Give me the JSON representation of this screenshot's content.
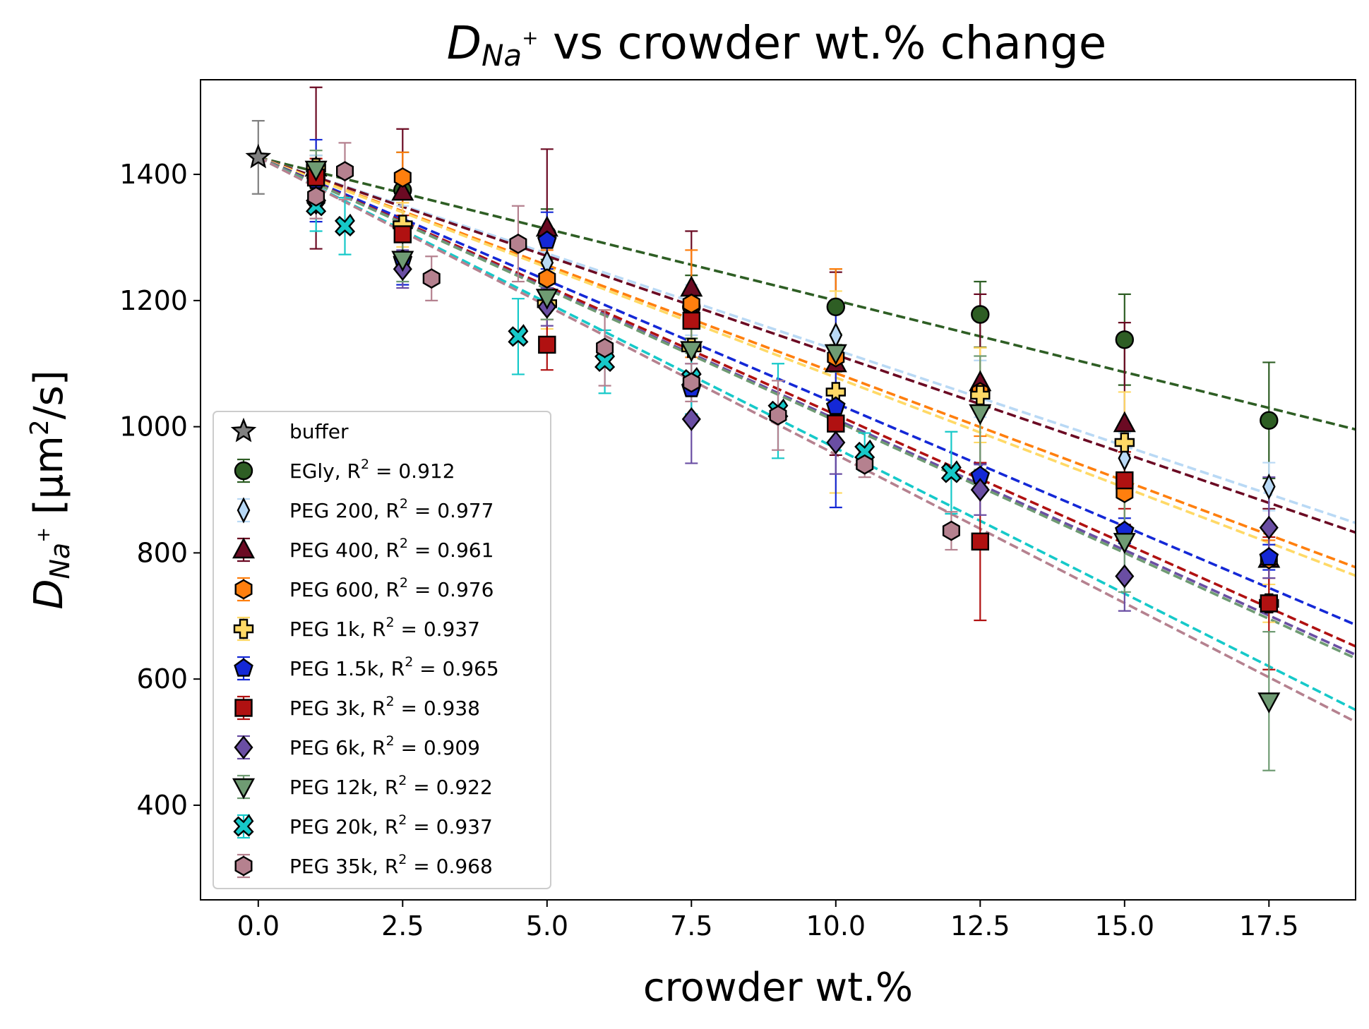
{
  "chart_data": {
    "type": "scatter",
    "title": "D_Na+ vs crowder wt.% change",
    "title_parts": {
      "symbol": "D",
      "subscript": "Na",
      "superscript": "+",
      "rest": " vs crowder wt.% change"
    },
    "xlabel": "crowder wt.%",
    "ylabel": "D_Na+ [μm²/s]",
    "ylabel_parts": {
      "symbol": "D",
      "subscript": "Na",
      "superscript": "+",
      "unit_prefix": " [μm",
      "unit_sup": "2",
      "unit_suffix": "/s]"
    },
    "xlim": [
      -1.0,
      19.0
    ],
    "ylim": [
      250,
      1550
    ],
    "x_ticks": [
      0.0,
      2.5,
      5.0,
      7.5,
      10.0,
      12.5,
      15.0,
      17.5
    ],
    "x_tick_labels": [
      "0.0",
      "2.5",
      "5.0",
      "7.5",
      "10.0",
      "12.5",
      "15.0",
      "17.5"
    ],
    "y_ticks": [
      400,
      600,
      800,
      1000,
      1200,
      1400
    ],
    "y_tick_labels": [
      "400",
      "600",
      "800",
      "1000",
      "1200",
      "1400"
    ],
    "grid": false,
    "legend_position": "lower-left",
    "series": [
      {
        "name": "buffer",
        "label_prefix": "buffer",
        "r2_value": "",
        "marker": "star",
        "color": "#808080",
        "edge": "#000000",
        "points": [
          {
            "x": 0,
            "y": 1427,
            "err": 58
          }
        ],
        "fit": null
      },
      {
        "name": "EGly",
        "label_prefix": "EGly, R",
        "r2_value": " = 0.912",
        "marker": "circle",
        "color": "#2e5e24",
        "edge": "#000000",
        "points": [
          {
            "x": 1,
            "y": 1405,
            "err": 25
          },
          {
            "x": 2.5,
            "y": 1375,
            "err": 60
          },
          {
            "x": 5,
            "y": 1305,
            "err": 40
          },
          {
            "x": 7.5,
            "y": 1190,
            "err": 50
          },
          {
            "x": 10,
            "y": 1190,
            "err": 60
          },
          {
            "x": 12.5,
            "y": 1178,
            "err": 52
          },
          {
            "x": 15,
            "y": 1138,
            "err": 72
          },
          {
            "x": 17.5,
            "y": 1010,
            "err": 92
          }
        ],
        "fit": {
          "x0": 0,
          "y0": 1427,
          "slope": -22.7
        }
      },
      {
        "name": "PEG 200",
        "label_prefix": "PEG 200, R",
        "r2_value": " = 0.977",
        "marker": "thin_diamond",
        "color": "#b9d9f5",
        "edge": "#000000",
        "points": [
          {
            "x": 1,
            "y": 1400,
            "err": 30
          },
          {
            "x": 2.5,
            "y": 1310,
            "err": 40
          },
          {
            "x": 5,
            "y": 1260,
            "err": 35
          },
          {
            "x": 7.5,
            "y": 1185,
            "err": 40
          },
          {
            "x": 10,
            "y": 1145,
            "err": 50
          },
          {
            "x": 12.5,
            "y": 1060,
            "err": 45
          },
          {
            "x": 15,
            "y": 950,
            "err": 40
          },
          {
            "x": 17.5,
            "y": 905,
            "err": 38
          }
        ],
        "fit": {
          "x0": 0,
          "y0": 1427,
          "slope": -30.5
        }
      },
      {
        "name": "PEG 400",
        "label_prefix": "PEG 400, R",
        "r2_value": " = 0.961",
        "marker": "triangle_up",
        "color": "#6b0a23",
        "edge": "#000000",
        "points": [
          {
            "x": 1,
            "y": 1410,
            "err": 128
          },
          {
            "x": 2.5,
            "y": 1372,
            "err": 100
          },
          {
            "x": 5,
            "y": 1315,
            "err": 125
          },
          {
            "x": 7.5,
            "y": 1220,
            "err": 90
          },
          {
            "x": 10,
            "y": 1100,
            "err": 145
          },
          {
            "x": 12.5,
            "y": 1070,
            "err": 140
          },
          {
            "x": 15,
            "y": 1005,
            "err": 160
          },
          {
            "x": 17.5,
            "y": 790,
            "err": 80
          }
        ],
        "fit": {
          "x0": 0,
          "y0": 1427,
          "slope": -31.3
        }
      },
      {
        "name": "PEG 600",
        "label_prefix": "PEG 600, R",
        "r2_value": " = 0.976",
        "marker": "hexagon",
        "color": "#ff7f0e",
        "edge": "#000000",
        "points": [
          {
            "x": 1,
            "y": 1395,
            "err": 30
          },
          {
            "x": 2.5,
            "y": 1395,
            "err": 40
          },
          {
            "x": 5,
            "y": 1235,
            "err": 45
          },
          {
            "x": 7.5,
            "y": 1195,
            "err": 85
          },
          {
            "x": 10,
            "y": 1110,
            "err": 140
          },
          {
            "x": 12.5,
            "y": 1055,
            "err": 70
          },
          {
            "x": 15,
            "y": 895,
            "err": 65
          },
          {
            "x": 17.5,
            "y": 790,
            "err": 30
          }
        ],
        "fit": {
          "x0": 0,
          "y0": 1427,
          "slope": -34.2
        }
      },
      {
        "name": "PEG 1k",
        "label_prefix": "PEG 1k, R",
        "r2_value": " = 0.937",
        "marker": "plus_filled",
        "color": "#ffd966",
        "edge": "#000000",
        "points": [
          {
            "x": 1,
            "y": 1410,
            "err": 28
          },
          {
            "x": 2.5,
            "y": 1320,
            "err": 35
          },
          {
            "x": 5,
            "y": 1195,
            "err": 40
          },
          {
            "x": 7.5,
            "y": 1125,
            "err": 42
          },
          {
            "x": 10,
            "y": 1055,
            "err": 160
          },
          {
            "x": 12.5,
            "y": 1050,
            "err": 75
          },
          {
            "x": 15,
            "y": 975,
            "err": 80
          },
          {
            "x": 17.5,
            "y": 720,
            "err": 30
          }
        ],
        "fit": {
          "x0": 0,
          "y0": 1427,
          "slope": -34.9
        }
      },
      {
        "name": "PEG 1.5k",
        "label_prefix": "PEG 1.5k, R",
        "r2_value": " = 0.965",
        "marker": "pentagon",
        "color": "#1428d6",
        "edge": "#000000",
        "points": [
          {
            "x": 1,
            "y": 1390,
            "err": 65
          },
          {
            "x": 2.5,
            "y": 1265,
            "err": 40
          },
          {
            "x": 5,
            "y": 1295,
            "err": 45
          },
          {
            "x": 7.5,
            "y": 1060,
            "err": 40
          },
          {
            "x": 10,
            "y": 1032,
            "err": 160
          },
          {
            "x": 12.5,
            "y": 922,
            "err": 20
          },
          {
            "x": 15,
            "y": 835,
            "err": 20
          },
          {
            "x": 17.5,
            "y": 793,
            "err": 20
          }
        ],
        "fit": {
          "x0": 0,
          "y0": 1427,
          "slope": -39.0
        }
      },
      {
        "name": "PEG 3k",
        "label_prefix": "PEG 3k, R",
        "r2_value": " = 0.938",
        "marker": "square",
        "color": "#b01111",
        "edge": "#000000",
        "points": [
          {
            "x": 1,
            "y": 1395,
            "err": 30
          },
          {
            "x": 2.5,
            "y": 1305,
            "err": 30
          },
          {
            "x": 5,
            "y": 1130,
            "err": 40
          },
          {
            "x": 7.5,
            "y": 1168,
            "err": 40
          },
          {
            "x": 10,
            "y": 1005,
            "err": 30
          },
          {
            "x": 12.5,
            "y": 818,
            "err": 125
          },
          {
            "x": 15,
            "y": 915,
            "err": 45
          },
          {
            "x": 17.5,
            "y": 720,
            "err": 105
          }
        ],
        "fit": {
          "x0": 0,
          "y0": 1427,
          "slope": -40.8
        }
      },
      {
        "name": "PEG 6k",
        "label_prefix": "PEG 6k, R",
        "r2_value": " = 0.909",
        "marker": "diamond",
        "color": "#6a4ea3",
        "edge": "#000000",
        "points": [
          {
            "x": 1,
            "y": 1355,
            "err": 25
          },
          {
            "x": 2.5,
            "y": 1250,
            "err": 30
          },
          {
            "x": 5,
            "y": 1190,
            "err": 30
          },
          {
            "x": 7.5,
            "y": 1012,
            "err": 70
          },
          {
            "x": 10,
            "y": 975,
            "err": 50
          },
          {
            "x": 12.5,
            "y": 900,
            "err": 40
          },
          {
            "x": 15,
            "y": 763,
            "err": 55
          },
          {
            "x": 17.5,
            "y": 840,
            "err": 80
          }
        ],
        "fit": {
          "x0": 0,
          "y0": 1427,
          "slope": -41.5
        }
      },
      {
        "name": "PEG 12k",
        "label_prefix": "PEG 12k, R",
        "r2_value": " = 0.922",
        "marker": "triangle_down",
        "color": "#6f9b73",
        "edge": "#000000",
        "points": [
          {
            "x": 1,
            "y": 1408,
            "err": 30
          },
          {
            "x": 2.5,
            "y": 1265,
            "err": 35
          },
          {
            "x": 5,
            "y": 1205,
            "err": 35
          },
          {
            "x": 7.5,
            "y": 1122,
            "err": 40
          },
          {
            "x": 10,
            "y": 1117,
            "err": 30
          },
          {
            "x": 12.5,
            "y": 1022,
            "err": 90
          },
          {
            "x": 15,
            "y": 818,
            "err": 80
          },
          {
            "x": 17.5,
            "y": 565,
            "err": 110
          }
        ],
        "fit": {
          "x0": 0,
          "y0": 1427,
          "slope": -41.8
        }
      },
      {
        "name": "PEG 20k",
        "label_prefix": "PEG 20k, R",
        "r2_value": " = 0.937",
        "marker": "x_filled",
        "color": "#16c9c9",
        "edge": "#000000",
        "points": [
          {
            "x": 1,
            "y": 1350,
            "err": 40
          },
          {
            "x": 1.5,
            "y": 1318,
            "err": 45
          },
          {
            "x": 4.5,
            "y": 1143,
            "err": 60
          },
          {
            "x": 6,
            "y": 1103,
            "err": 50
          },
          {
            "x": 7.5,
            "y": 1075,
            "err": 55
          },
          {
            "x": 9,
            "y": 1025,
            "err": 75
          },
          {
            "x": 10.5,
            "y": 960,
            "err": 30
          },
          {
            "x": 12,
            "y": 927,
            "err": 65
          }
        ],
        "fit": {
          "x0": 0,
          "y0": 1427,
          "slope": -46.1
        }
      },
      {
        "name": "PEG 35k",
        "label_prefix": "PEG 35k, R",
        "r2_value": " = 0.968",
        "marker": "hexagon",
        "color": "#b5818f",
        "edge": "#000000",
        "points": [
          {
            "x": 1,
            "y": 1365,
            "err": 35
          },
          {
            "x": 1.5,
            "y": 1405,
            "err": 45
          },
          {
            "x": 3,
            "y": 1235,
            "err": 35
          },
          {
            "x": 4.5,
            "y": 1290,
            "err": 60
          },
          {
            "x": 6,
            "y": 1125,
            "err": 60
          },
          {
            "x": 7.5,
            "y": 1070,
            "err": 30
          },
          {
            "x": 9,
            "y": 1018,
            "err": 55
          },
          {
            "x": 10.5,
            "y": 940,
            "err": 20
          },
          {
            "x": 12,
            "y": 835,
            "err": 30
          }
        ],
        "fit": {
          "x0": 0,
          "y0": 1427,
          "slope": -47.1
        }
      }
    ]
  }
}
